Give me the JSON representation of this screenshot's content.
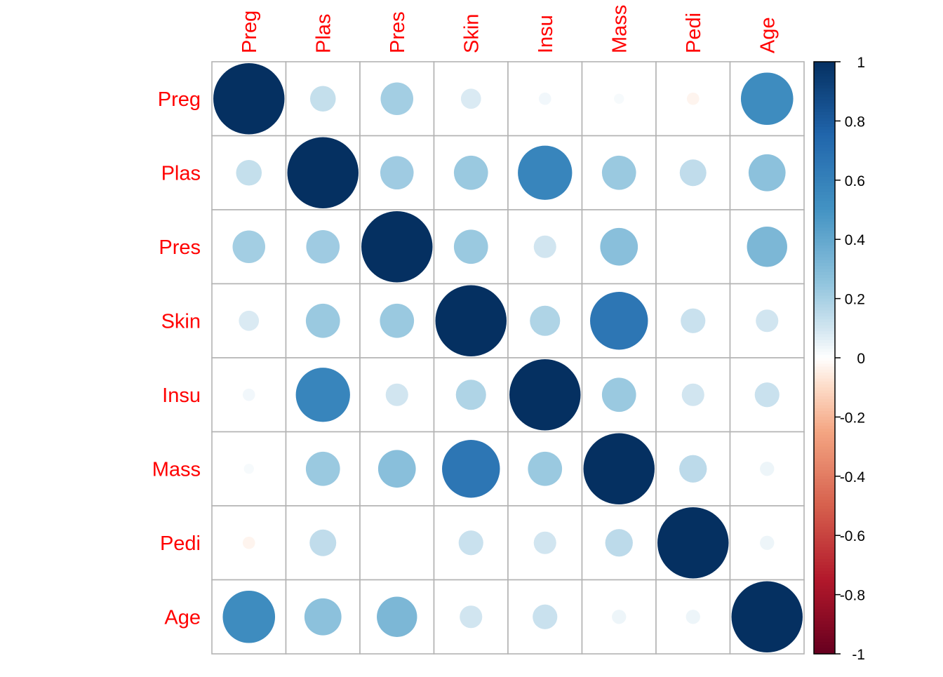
{
  "chart_data": {
    "type": "heatmap",
    "style": "correlation-circles",
    "variables": [
      "Preg",
      "Plas",
      "Pres",
      "Skin",
      "Insu",
      "Mass",
      "Pedi",
      "Age"
    ],
    "matrix": [
      [
        1.0,
        0.13,
        0.21,
        0.08,
        0.03,
        0.02,
        -0.03,
        0.54
      ],
      [
        0.13,
        1.0,
        0.22,
        0.23,
        0.58,
        0.23,
        0.14,
        0.27
      ],
      [
        0.21,
        0.22,
        1.0,
        0.23,
        0.1,
        0.28,
        0.0,
        0.32
      ],
      [
        0.08,
        0.23,
        0.23,
        1.0,
        0.18,
        0.66,
        0.12,
        0.1
      ],
      [
        0.03,
        0.58,
        0.1,
        0.18,
        1.0,
        0.23,
        0.1,
        0.12
      ],
      [
        0.02,
        0.23,
        0.28,
        0.66,
        0.23,
        1.0,
        0.15,
        0.04
      ],
      [
        -0.03,
        0.14,
        0.0,
        0.12,
        0.1,
        0.15,
        1.0,
        0.04
      ],
      [
        0.54,
        0.27,
        0.32,
        0.1,
        0.12,
        0.04,
        0.04,
        1.0
      ]
    ],
    "color_scale": {
      "range": [
        -1,
        1
      ],
      "ticks": [
        1,
        0.8,
        0.6,
        0.4,
        0.2,
        0,
        -0.2,
        -0.4,
        -0.6,
        -0.8,
        -1
      ],
      "tick_labels": [
        "1",
        "0.8",
        "0.6",
        "0.4",
        "0.2",
        "0",
        "-0.2",
        "-0.4",
        "-0.6",
        "-0.8",
        "-1"
      ],
      "stops": [
        {
          "value": -1,
          "color": "#67001F"
        },
        {
          "value": -0.75,
          "color": "#B2182B"
        },
        {
          "value": -0.5,
          "color": "#D6604D"
        },
        {
          "value": -0.25,
          "color": "#F4A582"
        },
        {
          "value": -0.1,
          "color": "#FDDBC7"
        },
        {
          "value": 0,
          "color": "#FFFFFF"
        },
        {
          "value": 0.1,
          "color": "#D1E5F0"
        },
        {
          "value": 0.25,
          "color": "#92C5DE"
        },
        {
          "value": 0.5,
          "color": "#4393C3"
        },
        {
          "value": 0.75,
          "color": "#2166AC"
        },
        {
          "value": 1,
          "color": "#053061"
        }
      ]
    },
    "label_color": "#FF0000",
    "grid": true,
    "legend_position": "right"
  }
}
